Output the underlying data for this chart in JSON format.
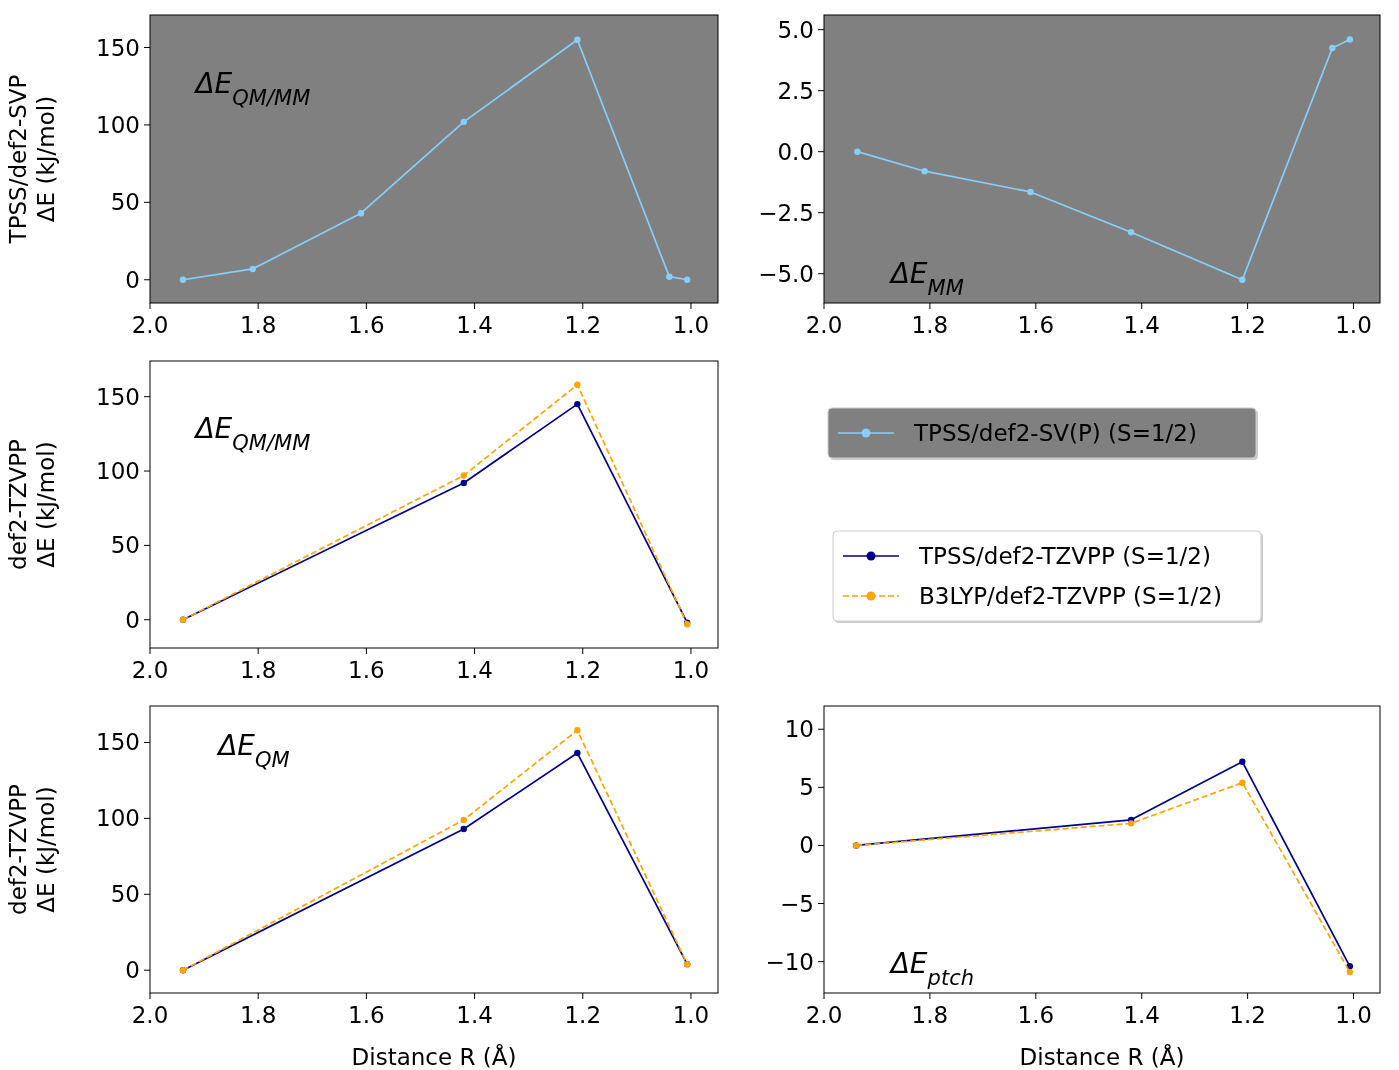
{
  "chart_data": [
    {
      "type": "line",
      "ylabel": "TPSS/def2-SVP\nΔE (kJ/mol)",
      "annotations": [
        "ΔE$_{QM/MM}$"
      ],
      "xlim": [
        2.0,
        0.95
      ],
      "xticks": [
        {
          "value": 2.0,
          "label": "2.0"
        },
        {
          "value": 1.8,
          "label": "1.8"
        },
        {
          "value": 1.6,
          "label": "1.6"
        },
        {
          "value": 1.4,
          "label": "1.4"
        },
        {
          "value": 1.2,
          "label": "1.2"
        },
        {
          "value": 1.0,
          "label": "1.0"
        }
      ],
      "ylim": [
        -15,
        171
      ],
      "yticks": [
        0,
        50,
        100,
        150
      ],
      "marker": "circle",
      "grid": false,
      "legend": false,
      "series": [
        {
          "color": "#87cefa",
          "x": [
            1.939,
            1.81,
            1.61,
            1.42,
            1.21,
            1.04,
            1.007
          ],
          "values": [
            0,
            7,
            43,
            102,
            155,
            2,
            0
          ]
        }
      ]
    },
    {
      "type": "line",
      "annotations": [
        "ΔE$_{MM}$"
      ],
      "xlim": [
        2.0,
        0.95
      ],
      "xticks": [
        {
          "value": 2.0,
          "label": "2.0"
        },
        {
          "value": 1.8,
          "label": "1.8"
        },
        {
          "value": 1.6,
          "label": "1.6"
        },
        {
          "value": 1.4,
          "label": "1.4"
        },
        {
          "value": 1.2,
          "label": "1.2"
        },
        {
          "value": 1.0,
          "label": "1.0"
        }
      ],
      "ylim": [
        -6.2,
        5.6
      ],
      "yticks": [
        {
          "value": 5,
          "label": "5.0"
        },
        {
          "value": 2.5,
          "label": "2.5"
        },
        {
          "value": 0,
          "label": "0.0"
        },
        {
          "value": -2.5,
          "label": "−2.5"
        },
        {
          "value": -5,
          "label": "−5.0"
        }
      ],
      "marker": "circle",
      "grid": false,
      "legend": "bottom",
      "series": [
        {
          "name": "TPSS/def2-SV(P) (S=1/2)",
          "color": "#87cefa",
          "x": [
            1.937,
            1.81,
            1.61,
            1.42,
            1.21,
            1.04,
            1.007
          ],
          "values": [
            0,
            -0.8,
            -1.65,
            -3.3,
            -5.25,
            4.25,
            4.6
          ]
        }
      ]
    },
    {
      "type": "line",
      "ylabel": "def2-TZVPP\nΔE (kJ/mol)",
      "annotations": [
        "ΔE$_{QM/MM}$"
      ],
      "xlim": [
        2.0,
        0.95
      ],
      "xticks": [
        {
          "value": 2.0,
          "label": "2.0"
        },
        {
          "value": 1.8,
          "label": "1.8"
        },
        {
          "value": 1.6,
          "label": "1.6"
        },
        {
          "value": 1.4,
          "label": "1.4"
        },
        {
          "value": 1.2,
          "label": "1.2"
        },
        {
          "value": 1.0,
          "label": "1.0"
        }
      ],
      "ylim": [
        -19,
        174
      ],
      "yticks": [
        0,
        50,
        100,
        150
      ],
      "marker": "circle",
      "grid": false,
      "legend": "right",
      "series": [
        {
          "name": "TPSS/def2-TZVPP (S=1/2)",
          "color": "#00008b",
          "line_style": "solid",
          "x": [
            1.939,
            1.42,
            1.21,
            1.007
          ],
          "values": [
            0,
            92,
            145,
            -2
          ]
        },
        {
          "name": "B3LYP/def2-TZVPP (S=1/2)",
          "color": "#ffa500",
          "line_style": "dashed",
          "x": [
            1.939,
            1.42,
            1.21,
            1.007
          ],
          "values": [
            0,
            97,
            158,
            -3
          ]
        }
      ]
    },
    {
      "type": "line",
      "ylabel": "def2-TZVPP\nΔE (kJ/mol)",
      "xlabel": "Distance R (Å)",
      "annotations": [
        "ΔE$_{QM}$"
      ],
      "xlim": [
        2.0,
        0.95
      ],
      "xticks": [
        {
          "value": 2.0,
          "label": "2.0"
        },
        {
          "value": 1.8,
          "label": "1.8"
        },
        {
          "value": 1.6,
          "label": "1.6"
        },
        {
          "value": 1.4,
          "label": "1.4"
        },
        {
          "value": 1.2,
          "label": "1.2"
        },
        {
          "value": 1.0,
          "label": "1.0"
        }
      ],
      "ylim": [
        -15,
        174
      ],
      "yticks": [
        0,
        50,
        100,
        150
      ],
      "marker": "circle",
      "grid": false,
      "legend": false,
      "series": [
        {
          "color": "#00008b",
          "line_style": "solid",
          "x": [
            1.939,
            1.42,
            1.21,
            1.007
          ],
          "values": [
            0,
            93,
            143,
            4
          ]
        },
        {
          "color": "#ffa500",
          "line_style": "dashed",
          "x": [
            1.939,
            1.42,
            1.21,
            1.007
          ],
          "values": [
            0,
            99,
            158,
            4
          ]
        }
      ]
    },
    {
      "type": "line",
      "xlabel": "Distance R (Å)",
      "annotations": [
        "ΔE$_{ptch}$"
      ],
      "xlim": [
        2.0,
        0.95
      ],
      "xticks": [
        {
          "value": 2.0,
          "label": "2.0"
        },
        {
          "value": 1.8,
          "label": "1.8"
        },
        {
          "value": 1.6,
          "label": "1.6"
        },
        {
          "value": 1.4,
          "label": "1.4"
        },
        {
          "value": 1.2,
          "label": "1.2"
        },
        {
          "value": 1.0,
          "label": "1.0"
        }
      ],
      "ylim": [
        -12.7,
        12
      ],
      "yticks": [
        10,
        5,
        0,
        {
          "value": -5,
          "label": "−5"
        },
        {
          "value": -10,
          "label": "−10"
        }
      ],
      "marker": "circle",
      "grid": false,
      "legend": false,
      "series": [
        {
          "color": "#00008b",
          "line_style": "solid",
          "x": [
            1.939,
            1.42,
            1.21,
            1.007
          ],
          "values": [
            0,
            2.2,
            7.2,
            -10.4
          ]
        },
        {
          "color": "#ffa500",
          "line_style": "dashed",
          "x": [
            1.939,
            1.42,
            1.21,
            1.007
          ],
          "values": [
            0,
            1.9,
            5.4,
            -10.9
          ]
        }
      ]
    }
  ]
}
